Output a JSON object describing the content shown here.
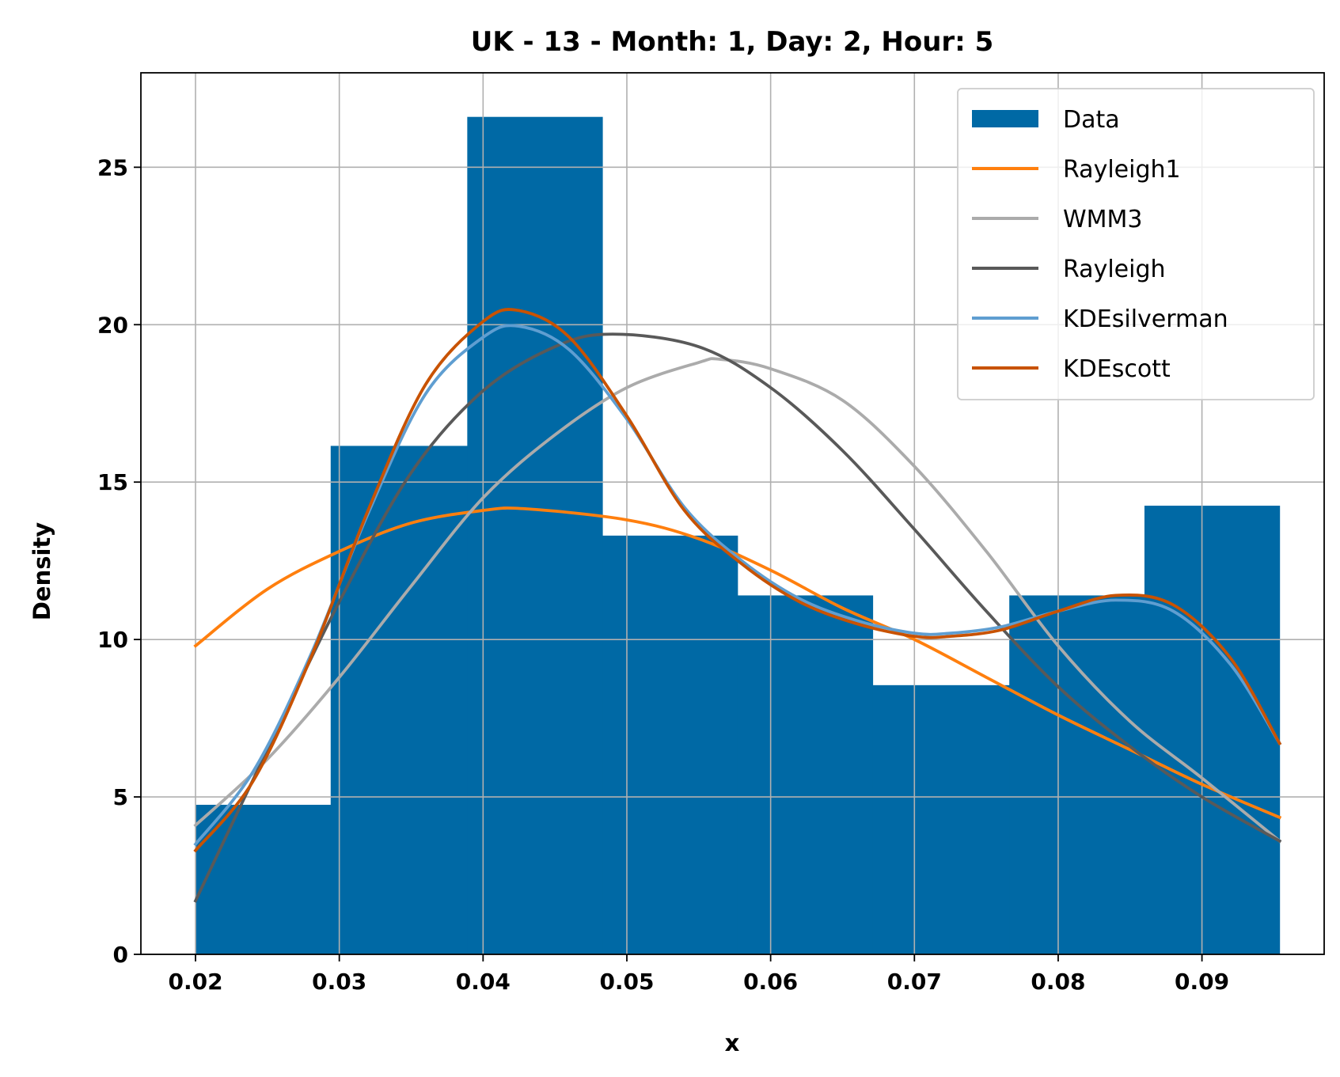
{
  "chart_data": {
    "type": "bar",
    "title": "UK - 13 - Month: 1, Day: 2, Hour: 5",
    "xlabel": "x",
    "ylabel": "Density",
    "xlim": [
      0.0162,
      0.0985
    ],
    "ylim": [
      0,
      28
    ],
    "xticks": [
      0.02,
      0.03,
      0.04,
      0.05,
      0.06,
      0.07,
      0.08,
      0.09
    ],
    "xtick_labels": [
      "0.02",
      "0.03",
      "0.04",
      "0.05",
      "0.06",
      "0.07",
      "0.08",
      "0.09"
    ],
    "yticks": [
      0,
      5,
      10,
      15,
      20,
      25
    ],
    "ytick_labels": [
      "0",
      "5",
      "10",
      "15",
      "20",
      "25"
    ],
    "grid": true,
    "legend_position": "top-right",
    "histogram": {
      "name": "Data",
      "color": "#0069a5",
      "bin_edges": [
        0.02,
        0.0294,
        0.0389,
        0.0483,
        0.0577,
        0.0671,
        0.0766,
        0.086,
        0.0954
      ],
      "values": [
        4.75,
        16.15,
        26.6,
        13.3,
        11.4,
        8.55,
        11.4,
        14.25
      ]
    },
    "series": [
      {
        "name": "Rayleigh1",
        "color": "#ff7f0e",
        "x": [
          0.02,
          0.025,
          0.03,
          0.035,
          0.04,
          0.043,
          0.05,
          0.055,
          0.06,
          0.065,
          0.07,
          0.075,
          0.08,
          0.085,
          0.09,
          0.0954
        ],
        "y": [
          9.8,
          11.6,
          12.8,
          13.7,
          14.1,
          14.15,
          13.8,
          13.2,
          12.2,
          11.0,
          10.0,
          8.8,
          7.6,
          6.5,
          5.4,
          4.35
        ]
      },
      {
        "name": "WMM3",
        "color": "#ababab",
        "x": [
          0.02,
          0.025,
          0.03,
          0.035,
          0.04,
          0.045,
          0.05,
          0.055,
          0.0565,
          0.06,
          0.065,
          0.07,
          0.075,
          0.08,
          0.085,
          0.09,
          0.0954
        ],
        "y": [
          4.1,
          6.2,
          8.8,
          11.7,
          14.5,
          16.5,
          18.0,
          18.8,
          18.9,
          18.6,
          17.6,
          15.5,
          12.8,
          9.8,
          7.4,
          5.6,
          3.6
        ]
      },
      {
        "name": "Rayleigh",
        "color": "#595959",
        "x": [
          0.02,
          0.025,
          0.03,
          0.035,
          0.04,
          0.045,
          0.049,
          0.055,
          0.06,
          0.065,
          0.07,
          0.075,
          0.08,
          0.085,
          0.09,
          0.0954
        ],
        "y": [
          1.7,
          6.5,
          11.2,
          15.3,
          17.9,
          19.3,
          19.7,
          19.3,
          18.0,
          16.0,
          13.5,
          10.9,
          8.5,
          6.6,
          5.0,
          3.6
        ]
      },
      {
        "name": "KDEsilverman",
        "color": "#5f9ed1",
        "x": [
          0.02,
          0.024,
          0.028,
          0.032,
          0.036,
          0.04,
          0.0425,
          0.046,
          0.05,
          0.054,
          0.058,
          0.062,
          0.066,
          0.07,
          0.0725,
          0.076,
          0.08,
          0.084,
          0.088,
          0.092,
          0.0954
        ],
        "y": [
          3.5,
          5.8,
          9.5,
          14.0,
          17.8,
          19.6,
          19.95,
          19.2,
          17.0,
          14.2,
          12.5,
          11.3,
          10.6,
          10.2,
          10.2,
          10.4,
          10.9,
          11.25,
          10.9,
          9.2,
          6.7
        ]
      },
      {
        "name": "KDEscott",
        "color": "#c85200",
        "x": [
          0.02,
          0.024,
          0.028,
          0.032,
          0.036,
          0.04,
          0.0425,
          0.046,
          0.05,
          0.054,
          0.058,
          0.062,
          0.066,
          0.07,
          0.0725,
          0.076,
          0.08,
          0.084,
          0.088,
          0.092,
          0.0954
        ],
        "y": [
          3.3,
          5.5,
          9.4,
          14.1,
          18.1,
          20.1,
          20.45,
          19.6,
          17.1,
          14.1,
          12.4,
          11.2,
          10.5,
          10.1,
          10.1,
          10.3,
          10.9,
          11.4,
          11.1,
          9.4,
          6.7
        ]
      }
    ]
  }
}
